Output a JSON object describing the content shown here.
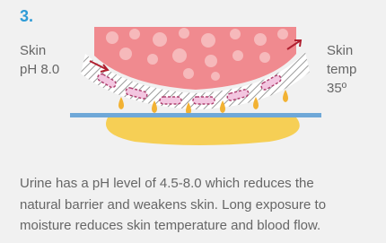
{
  "step": "3.",
  "labels": {
    "left": [
      "Skin",
      "pH 8.0"
    ],
    "right": [
      "Skin",
      "temp",
      "35º"
    ]
  },
  "caption": [
    "Urine has a pH level of 4.5-8.0 which reduces the",
    "natural barrier and weakens skin. Long exposure to",
    "moisture reduces skin temperature and blood flow."
  ]
}
